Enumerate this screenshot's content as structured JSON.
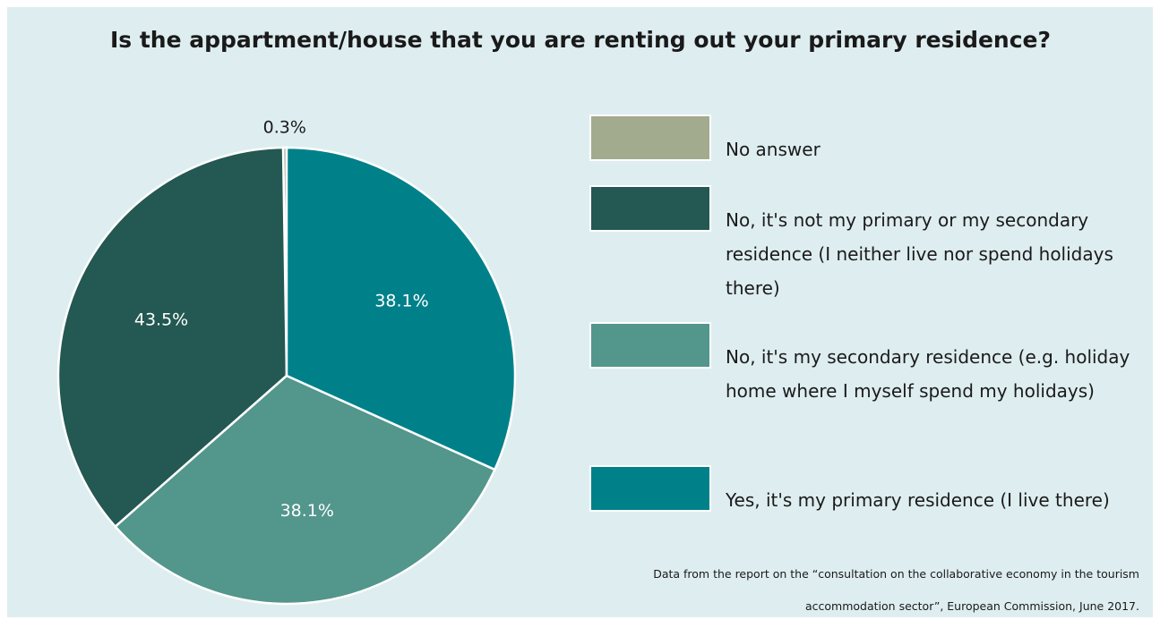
{
  "chart_data": {
    "type": "pie",
    "title": "Is the appartment/house that you are renting out your primary residence?",
    "categories": [
      "No answer",
      "No, it's not my primary or my secondary residence (I neither live nor spend holidays there)",
      "No, it's my secondary residence (e.g. holiday home where I myself spend my holidays)",
      "Yes, it's my primary residence (I live there)"
    ],
    "values": [
      0.3,
      43.5,
      38.1,
      38.1
    ],
    "value_labels": [
      "0.3%",
      "43.5%",
      "38.1%",
      "38.1%"
    ],
    "colors": [
      "#a2ab8e",
      "#245852",
      "#52968c",
      "#00818a"
    ],
    "legend": "right",
    "source": "Data from the report on the “consultation on the collaborative economy in the tourism accommodation sector”, European Commission, June 2017."
  }
}
